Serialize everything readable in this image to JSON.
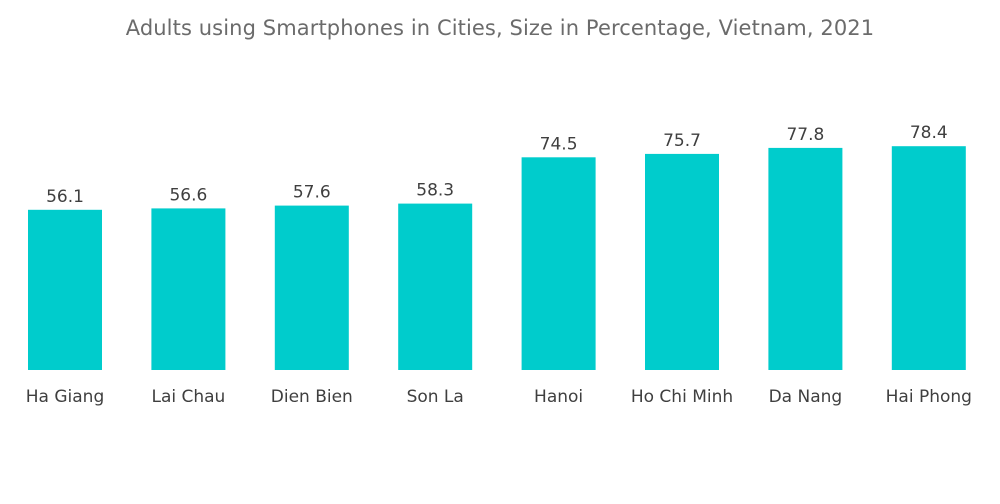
{
  "chart_data": {
    "type": "bar",
    "title": "Adults using Smartphones in Cities, Size in Percentage, Vietnam, 2021",
    "categories": [
      "Ha Giang",
      "Lai Chau",
      "Dien Bien",
      "Son La",
      "Hanoi",
      "Ho Chi Minh",
      "Da Nang",
      "Hai Phong"
    ],
    "values": [
      56.1,
      56.6,
      57.6,
      58.3,
      74.5,
      75.7,
      77.8,
      78.4
    ],
    "value_labels": [
      "56.1",
      "56.6",
      "57.6",
      "58.3",
      "74.5",
      "75.7",
      "77.8",
      "78.4"
    ],
    "xlabel": "",
    "ylabel": "",
    "ylim": [
      0,
      80
    ],
    "grid": false,
    "legend": "none",
    "bar_color": "#00cccc"
  }
}
